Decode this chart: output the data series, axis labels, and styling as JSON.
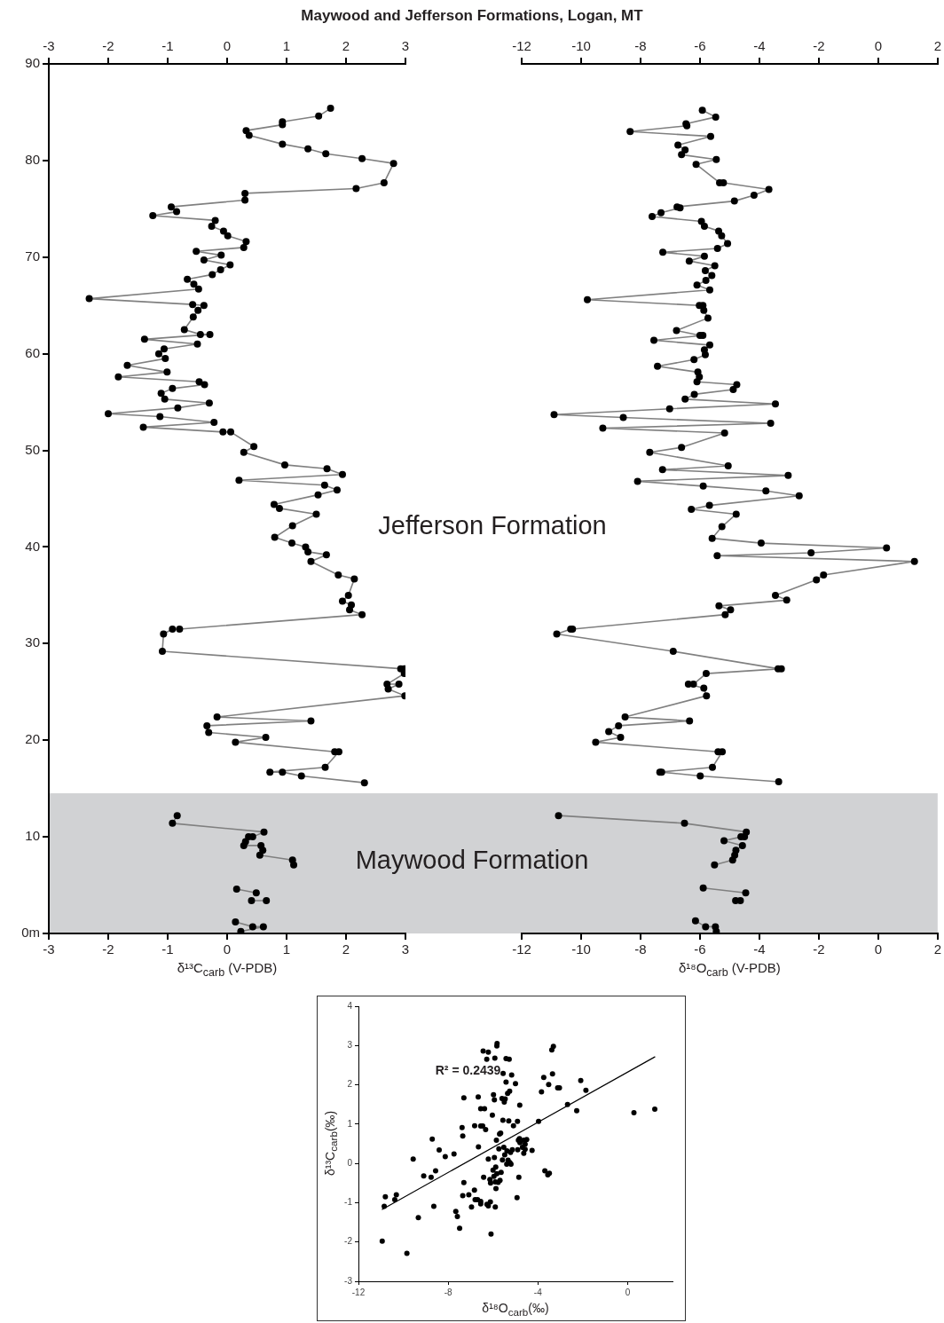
{
  "chart_data": [
    {
      "type": "line",
      "title": "Maywood and Jefferson Formations, Logan, MT",
      "xlabel": "δ¹³C$_{carb}$ (V-PDB)",
      "marker": "circle",
      "xlim": [
        -3,
        3
      ],
      "xticks": [
        -3,
        -2,
        -1,
        0,
        1,
        2,
        3
      ],
      "x2lim": [
        -3,
        3
      ],
      "x2ticks": [
        -3,
        -2,
        -1,
        0,
        1,
        2,
        3
      ],
      "ylim": [
        0,
        90
      ],
      "yticks": [
        {
          "value": 0,
          "label": "0m"
        },
        10,
        20,
        30,
        40,
        50,
        60,
        70,
        80,
        90
      ],
      "bands": [
        {
          "axis": "y",
          "from": 0,
          "to": 14.5,
          "label": "Maywood Formation",
          "color": "#d1d2d4"
        }
      ],
      "annotations": [
        "Jefferson Formation"
      ],
      "series": [
        {
          "color": "#000000",
          "x": [
            1.74,
            1.54,
            0.93,
            0.93,
            0.32,
            0.37,
            0.93,
            1.36,
            1.66,
            2.27,
            2.8,
            2.64,
            2.17,
            0.3,
            0.3,
            -0.94,
            -0.85,
            -1.25,
            -0.2,
            -0.26,
            -0.06,
            0.01,
            0.32,
            0.28,
            -0.52,
            -0.1,
            -0.39,
            0.05,
            -0.11,
            -0.25,
            -0.67,
            -0.56,
            -0.48,
            -2.32,
            -0.58,
            -0.39,
            -0.49,
            -0.57,
            -0.72,
            -0.45,
            -0.29,
            -1.39,
            -0.5,
            -1.06,
            -1.15,
            -1.04,
            -1.68,
            -1.01,
            -1.83,
            -0.47,
            -0.38,
            -0.92,
            -1.11,
            -1.05,
            -0.3,
            -0.83,
            -2.0,
            -1.13,
            -0.22,
            -1.41,
            -0.07,
            0.06,
            0.45,
            0.28,
            0.97,
            1.68,
            1.94,
            0.2,
            1.64,
            1.85,
            1.53,
            0.79,
            0.88,
            1.5,
            1.1,
            0.8,
            1.09,
            1.32,
            1.36,
            1.67,
            1.41,
            1.87,
            2.14,
            2.04,
            1.94,
            2.09,
            2.06,
            2.27,
            -0.8,
            -0.92,
            -1.07,
            -1.09,
            2.92,
            2.98,
            2.98,
            2.69,
            2.89,
            2.71,
            2.99,
            -0.17,
            1.41,
            -0.34,
            -0.31,
            0.65,
            0.14,
            1.81,
            1.88,
            1.65,
            0.72,
            0.93,
            1.25,
            2.31,
            null,
            -0.84,
            -0.92,
            0.62,
            0.43,
            0.36,
            0.31,
            0.28,
            0.57,
            0.6,
            0.55,
            1.1,
            1.12,
            null,
            0.16,
            0.49,
            null,
            0.41,
            0.66,
            null,
            0.14,
            0.43,
            0.61,
            0.23
          ],
          "values": [
            85.4,
            84.6,
            84.0,
            83.7,
            83.1,
            82.6,
            81.7,
            81.2,
            80.7,
            80.2,
            79.7,
            77.7,
            77.1,
            76.6,
            75.9,
            75.2,
            74.7,
            74.3,
            73.8,
            73.2,
            72.7,
            72.2,
            71.6,
            71.0,
            70.6,
            70.2,
            69.7,
            69.2,
            68.7,
            68.2,
            67.7,
            67.2,
            66.7,
            65.7,
            65.1,
            65.0,
            64.5,
            63.8,
            62.5,
            62.0,
            62.0,
            61.5,
            61.0,
            60.5,
            60.0,
            59.5,
            58.8,
            58.1,
            57.6,
            57.1,
            56.8,
            56.4,
            55.9,
            55.3,
            54.9,
            54.4,
            53.8,
            53.5,
            52.9,
            52.4,
            51.9,
            51.9,
            50.4,
            49.8,
            48.5,
            48.1,
            47.5,
            46.9,
            46.4,
            45.9,
            45.4,
            44.4,
            44.0,
            43.4,
            42.2,
            41.0,
            40.4,
            40.0,
            39.5,
            39.2,
            38.5,
            37.1,
            36.7,
            35.0,
            34.4,
            34.0,
            33.5,
            33.0,
            31.5,
            31.5,
            31.0,
            29.2,
            27.4,
            27.4,
            26.9,
            25.8,
            25.8,
            25.3,
            24.6,
            22.4,
            22.0,
            21.5,
            20.8,
            20.3,
            19.8,
            18.8,
            18.8,
            17.2,
            16.7,
            16.7,
            16.3,
            15.6,
            null,
            12.2,
            11.4,
            10.5,
            10.0,
            10.0,
            9.5,
            9.1,
            9.1,
            8.6,
            8.1,
            7.6,
            7.1,
            null,
            4.6,
            4.2,
            null,
            3.4,
            3.4,
            null,
            1.2,
            0.7,
            0.7,
            0.2
          ]
        }
      ]
    },
    {
      "type": "line",
      "xlabel": "δ¹⁸O$_{carb}$ (V-PDB)",
      "marker": "circle",
      "tick_labels": "x",
      "xlim": [
        -12,
        2
      ],
      "xticks": [
        -12,
        -10,
        -8,
        -6,
        -4,
        -2,
        0,
        2
      ],
      "x2lim": [
        -12,
        2
      ],
      "x2ticks": [
        -12,
        -10,
        -8,
        -6,
        -4,
        -2,
        0,
        2
      ],
      "ylim": [
        0,
        90
      ],
      "bands": [
        {
          "axis": "y",
          "from": 0,
          "to": 14.5,
          "color": "#d1d2d4"
        }
      ],
      "series": [
        {
          "color": "#000000",
          "x": [
            -5.92,
            -5.47,
            -6.47,
            -6.44,
            -8.35,
            -5.64,
            -6.74,
            -6.5,
            -6.62,
            -5.45,
            -6.13,
            -5.34,
            -5.21,
            -3.68,
            -4.18,
            -4.84,
            -6.77,
            -6.67,
            -7.31,
            -7.61,
            -5.95,
            -5.85,
            -5.37,
            -5.27,
            -5.07,
            -5.41,
            -7.25,
            -5.85,
            -6.36,
            -5.5,
            -5.82,
            -5.6,
            -5.8,
            -6.1,
            -5.67,
            -9.79,
            -6.02,
            -5.9,
            -5.87,
            -5.73,
            -6.79,
            -6.0,
            -5.9,
            -7.55,
            -5.67,
            -5.85,
            -5.82,
            -6.2,
            -7.43,
            -6.07,
            -6.02,
            -6.1,
            -4.76,
            -4.88,
            -6.19,
            -6.5,
            -3.46,
            -7.02,
            -10.91,
            -8.58,
            -3.62,
            -9.27,
            -5.17,
            -6.62,
            -7.69,
            -5.05,
            -7.26,
            -3.03,
            -8.1,
            -5.89,
            -3.78,
            -2.66,
            -5.68,
            -6.29,
            -4.78,
            -5.26,
            -5.59,
            -3.94,
            0.28,
            -2.26,
            -5.42,
            1.22,
            -1.84,
            -2.08,
            -3.46,
            -3.08,
            -5.36,
            -4.97,
            -5.15,
            -10.29,
            -10.35,
            -10.82,
            -6.9,
            -3.37,
            -3.26,
            -5.79,
            -6.22,
            -6.39,
            -5.87,
            -5.78,
            -8.52,
            -6.35,
            -8.74,
            -9.07,
            -8.67,
            -9.51,
            -5.39,
            -5.25,
            -5.58,
            -7.35,
            -7.29,
            -5.99,
            -3.35,
            null,
            -10.76,
            -6.52,
            -4.44,
            -4.5,
            -4.62,
            -5.19,
            -4.57,
            -4.79,
            -4.83,
            -4.9,
            -5.51,
            null,
            -5.89,
            -4.46,
            null,
            -4.8,
            -4.64,
            null,
            -6.15,
            -5.81,
            -5.48,
            -5.45
          ],
          "values": [
            85.2,
            84.5,
            83.8,
            83.6,
            83.0,
            82.5,
            81.6,
            81.1,
            80.6,
            80.1,
            79.6,
            77.7,
            77.7,
            77.0,
            76.4,
            75.8,
            75.2,
            75.1,
            74.6,
            74.2,
            73.7,
            73.2,
            72.7,
            72.2,
            71.4,
            70.9,
            70.5,
            70.1,
            69.6,
            69.1,
            68.6,
            68.1,
            67.6,
            67.1,
            66.6,
            65.6,
            65.0,
            65.0,
            64.5,
            63.7,
            62.4,
            61.9,
            61.9,
            61.4,
            60.9,
            60.4,
            59.9,
            59.4,
            58.7,
            58.1,
            57.6,
            57.1,
            56.8,
            56.3,
            55.8,
            55.3,
            54.8,
            54.3,
            53.7,
            53.4,
            52.8,
            52.3,
            51.8,
            50.3,
            49.8,
            48.4,
            48.0,
            47.4,
            46.8,
            46.3,
            45.8,
            45.3,
            44.3,
            43.9,
            43.4,
            42.1,
            40.9,
            40.4,
            39.9,
            39.4,
            39.1,
            38.5,
            37.1,
            36.6,
            35.0,
            34.5,
            33.9,
            33.5,
            33.0,
            31.5,
            31.5,
            31.0,
            29.2,
            27.4,
            27.4,
            26.9,
            25.8,
            25.8,
            25.4,
            24.6,
            22.4,
            22.0,
            21.5,
            20.9,
            20.3,
            19.8,
            18.8,
            18.8,
            17.2,
            16.7,
            16.7,
            16.3,
            15.7,
            null,
            12.2,
            11.4,
            10.5,
            10.0,
            10.0,
            9.6,
            9.1,
            8.6,
            8.1,
            7.6,
            7.1,
            null,
            4.7,
            4.2,
            null,
            3.4,
            3.4,
            null,
            1.3,
            0.7,
            0.7,
            0.2
          ]
        }
      ]
    },
    {
      "type": "scatter",
      "xlabel": "δ¹⁸O$_{carb}$(‰)",
      "ylabel": "δ¹³C$_{carb}$(‰)",
      "marker": "circle",
      "xlim": [
        -12,
        2
      ],
      "xticks": [
        -12,
        -8,
        -4,
        0
      ],
      "ylim": [
        -3,
        4
      ],
      "yticks": [
        -3,
        -2,
        -1,
        0,
        1,
        2,
        3,
        4
      ],
      "annotations": [
        "R² = 0.2439"
      ],
      "series": [
        {
          "color": "#000000",
          "x": [
            -10.94,
            -9.84,
            -10.85,
            -10.8,
            -10.38,
            -10.31,
            -9.56,
            -9.33,
            -9.09,
            -8.76,
            -8.71,
            -8.64,
            -8.56,
            -8.4,
            -8.13,
            -7.74,
            -7.66,
            -7.59,
            -7.49,
            -7.38,
            -7.35,
            -7.35,
            -7.3,
            -7.3,
            -7.08,
            -6.96,
            -6.83,
            -6.82,
            -6.8,
            -6.69,
            -6.66,
            -6.65,
            -6.55,
            -6.55,
            -6.55,
            -6.55,
            -6.46,
            -6.44,
            -6.38,
            -6.33,
            -6.42,
            -6.28,
            -6.21,
            -6.21,
            -6.27,
            -6.21,
            -6.14,
            -6.12,
            -6.09,
            -6.11,
            -6.03,
            -6.0,
            -5.98,
            -5.96,
            -5.94,
            -5.94,
            -5.92,
            -5.9,
            -5.9,
            -5.88,
            -5.87,
            -5.85,
            -5.83,
            -5.82,
            -5.83,
            -5.77,
            -5.74,
            -5.71,
            -5.69,
            -5.66,
            -5.64,
            -5.6,
            -5.58,
            -5.56,
            -5.55,
            -5.52,
            -5.5,
            -5.48,
            -5.46,
            -5.42,
            -5.42,
            -5.39,
            -5.38,
            -5.35,
            -5.33,
            -5.3,
            -5.28,
            -5.26,
            -5.25,
            -5.22,
            -5.2,
            -5.17,
            -5.14,
            -5.09,
            -5.0,
            -4.93,
            -4.91,
            -4.9,
            -4.87,
            -4.85,
            -4.82,
            -4.81,
            -4.8,
            -4.69,
            -4.63,
            -4.63,
            -4.57,
            -4.57,
            -4.5,
            -4.26,
            -3.97,
            -3.84,
            -3.74,
            -3.69,
            -3.56,
            -3.49,
            -3.52,
            -3.38,
            -3.35,
            -3.31,
            -3.12,
            -3.04,
            -2.68,
            -2.27,
            -2.09,
            -1.86,
            0.28,
            1.21
          ],
          "values": [
            -1.98,
            -2.29,
            -1.09,
            -0.85,
            -0.92,
            -0.8,
            0.11,
            -1.38,
            -0.32,
            -0.35,
            0.62,
            -1.09,
            -0.19,
            0.34,
            0.17,
            0.24,
            -1.22,
            -1.35,
            -1.65,
            0.91,
            -0.82,
            0.7,
            1.67,
            -0.49,
            -0.8,
            -1.11,
            -0.68,
            0.96,
            -0.92,
            -0.92,
            1.69,
            0.42,
            1.39,
            0.95,
            -0.97,
            -1.03,
            0.95,
            2.86,
            1.39,
            0.86,
            -0.35,
            2.65,
            2.83,
            0.11,
            -1.04,
            -1.08,
            -0.41,
            -0.98,
            -1.8,
            -0.5,
            1.23,
            -0.17,
            1.75,
            -0.33,
            0.15,
            1.62,
            2.68,
            -1.11,
            -0.47,
            -0.09,
            -0.64,
            0.59,
            2.99,
            3.05,
            -0.26,
            -0.48,
            0.37,
            0.75,
            -0.43,
            0.77,
            -0.23,
            1.65,
            0.09,
            1.1,
            2.29,
            0.41,
            1.56,
            0.22,
            1.64,
            2.07,
            2.67,
            -0.02,
            0.32,
            1.78,
            0.08,
            1.08,
            2.65,
            1.84,
            0.02,
            0.28,
            -0.02,
            2.25,
            0.35,
            0.96,
            2.03,
            -0.87,
            1.07,
            0.35,
            0.59,
            -0.35,
            0.63,
            1.48,
            0.53,
            0.41,
            0.59,
            0.26,
            0.49,
            0.36,
            0.61,
            0.33,
            1.07,
            1.82,
            2.19,
            -0.19,
            -0.29,
            -0.25,
            2.01,
            2.89,
            2.28,
            2.98,
            1.92,
            1.92,
            1.5,
            1.34,
            2.11,
            1.86,
            1.29,
            1.38
          ]
        },
        {
          "type": "line",
          "color": "#000000",
          "marker": "none",
          "x": [
            -10.94,
            1.21
          ],
          "values": [
            -1.17,
            2.71
          ]
        }
      ]
    }
  ]
}
